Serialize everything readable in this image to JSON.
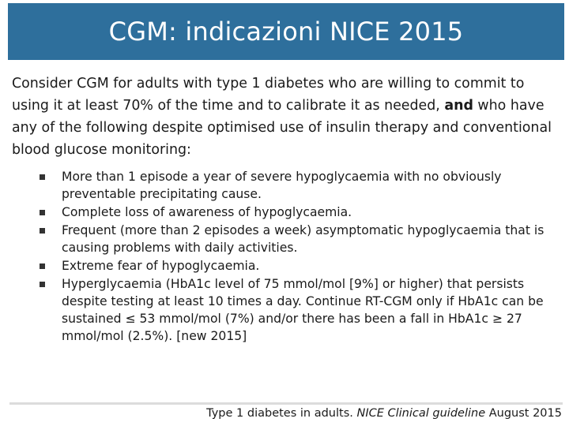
{
  "header": {
    "title": "CGM: indicazioni NICE 2015"
  },
  "intro": {
    "before_bold": "Consider CGM for adults with type 1 diabetes who are willing to commit to using it at least 70% of the time and to calibrate it as needed, ",
    "bold": "and",
    "after_bold": " who have any of the following despite optimised use of insulin therapy and conventional blood glucose monitoring:"
  },
  "criteria": [
    "More than 1 episode a year of severe hypoglycaemia with no obviously preventable precipitating cause.",
    "Complete loss of awareness of hypoglycaemia.",
    "Frequent (more than 2 episodes a week) asymptomatic hypoglycaemia that is causing problems with daily activities.",
    "Extreme fear of hypoglycaemia.",
    "Hyperglycaemia (HbA1c level of 75 mmol/mol [9%] or higher) that persists despite testing at least 10 times a day. Continue RT-CGM only if HbA1c can be sustained ≤ 53 mmol/mol (7%) and/or there has been a fall in HbA1c ≥ 27 mmol/mol (2.5%). [new 2015]"
  ],
  "citation": {
    "plain": "Type 1 diabetes in adults. ",
    "italic": "NICE Clinical guideline",
    "tail": " August 2015"
  },
  "colors": {
    "title_bg": "#2e6f9c",
    "title_text": "#ffffff",
    "bullet": "#333333"
  }
}
